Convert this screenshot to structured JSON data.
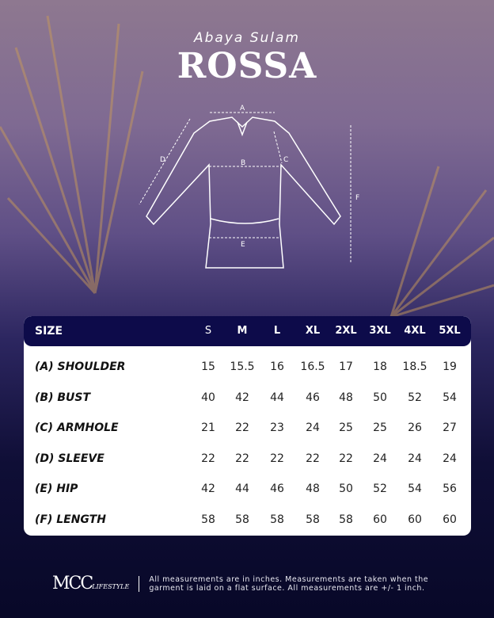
{
  "header": {
    "subtitle": "Abaya Sulam",
    "title": "ROSSA"
  },
  "diagram": {
    "labels": [
      "A",
      "B",
      "C",
      "D",
      "E",
      "F"
    ]
  },
  "table": {
    "size_header": "SIZE",
    "sizes": [
      "S",
      "M",
      "L",
      "XL",
      "2XL",
      "3XL",
      "4XL",
      "5XL"
    ],
    "rows": [
      {
        "label": "(A) SHOULDER",
        "values": [
          "15",
          "15.5",
          "16",
          "16.5",
          "17",
          "18",
          "18.5",
          "19"
        ]
      },
      {
        "label": "(B) BUST",
        "values": [
          "40",
          "42",
          "44",
          "46",
          "48",
          "50",
          "52",
          "54"
        ]
      },
      {
        "label": "(C) ARMHOLE",
        "values": [
          "21",
          "22",
          "23",
          "24",
          "25",
          "25",
          "26",
          "27"
        ]
      },
      {
        "label": "(D) SLEEVE",
        "values": [
          "22",
          "22",
          "22",
          "22",
          "22",
          "24",
          "24",
          "24"
        ]
      },
      {
        "label": "(E) HIP",
        "values": [
          "42",
          "44",
          "46",
          "48",
          "50",
          "52",
          "54",
          "56"
        ]
      },
      {
        "label": "(F) LENGTH",
        "values": [
          "58",
          "58",
          "58",
          "58",
          "58",
          "60",
          "60",
          "60"
        ]
      }
    ]
  },
  "footer": {
    "logo": "MCC",
    "logo_sub": "LIFESTYLE",
    "note_line1": "All measurements are in inches. Measurements are taken when the",
    "note_line2": "garment is laid on a flat surface. All measurements are +/- 1 inch."
  },
  "colors": {
    "header_band": "#0d0b4a",
    "table_bg": "#ffffff",
    "bg_bottom": "#080828"
  }
}
